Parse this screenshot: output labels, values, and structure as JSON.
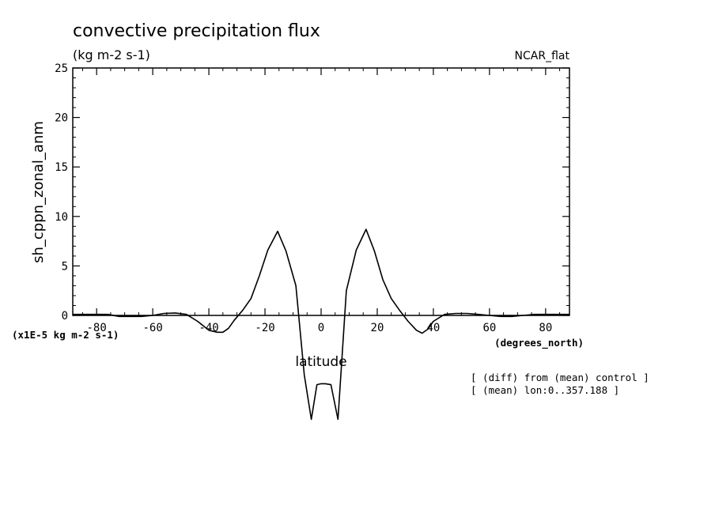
{
  "chart_data": {
    "type": "line",
    "title": "convective precipitation flux",
    "subtitle": "(kg m-2 s-1)",
    "label_top_right": "NCAR_flat",
    "ylabel": "sh_cppn_zonal_anm",
    "xlabel": "latitude",
    "x_units": "(degrees_north)",
    "y_units": "(x1E-5 kg m-2 s-1)",
    "xlim": [
      -88.5,
      88.5
    ],
    "ylim": [
      -10.5,
      25
    ],
    "y_axis_range_shown": [
      0,
      25
    ],
    "x_ticks": [
      -80,
      -60,
      -40,
      -20,
      0,
      20,
      40,
      60,
      80
    ],
    "x_tick_labels": [
      "-80",
      "-60",
      "-40",
      "-20",
      "0",
      "20",
      "40",
      "60",
      "80"
    ],
    "y_ticks": [
      0,
      5,
      10,
      15,
      20,
      25
    ],
    "y_tick_labels": [
      "0",
      "5",
      "10",
      "15",
      "20",
      "25"
    ],
    "grid": false,
    "legend": "none",
    "notes": [
      "[ (diff) from (mean) control ]",
      "[ (mean) lon:0..357.188 ]"
    ],
    "series": [
      {
        "x": [
          -88.5,
          -84,
          -80,
          -76,
          -72,
          -68,
          -64,
          -60,
          -56,
          -52,
          -48,
          -44,
          -40,
          -37,
          -35,
          -33,
          -31,
          -28,
          -25,
          -22,
          -19,
          -15.5,
          -12.5,
          -9,
          -6,
          -3.5,
          -1.5,
          0,
          1.5,
          3.5,
          6,
          9,
          12.5,
          16,
          19,
          22,
          25,
          28,
          31,
          34,
          36,
          38,
          40,
          44,
          48,
          52,
          56,
          60,
          64,
          68,
          72,
          76,
          80,
          84,
          88.5
        ],
        "y": [
          0.1,
          0.1,
          0.1,
          0.1,
          -0.1,
          -0.1,
          -0.1,
          0,
          0.2,
          0.25,
          0.1,
          -0.6,
          -1.5,
          -1.7,
          -1.7,
          -1.3,
          -0.5,
          0.5,
          1.7,
          4.0,
          6.6,
          8.5,
          6.5,
          3.0,
          -6.0,
          -10.5,
          -7.0,
          -6.9,
          -6.9,
          -7.0,
          -10.5,
          2.5,
          6.6,
          8.7,
          6.5,
          3.6,
          1.7,
          0.5,
          -0.6,
          -1.5,
          -1.8,
          -1.4,
          -0.6,
          0.1,
          0.2,
          0.2,
          0.1,
          0,
          -0.1,
          -0.1,
          0,
          0.1,
          0.1,
          0.1,
          0.1
        ]
      }
    ]
  }
}
